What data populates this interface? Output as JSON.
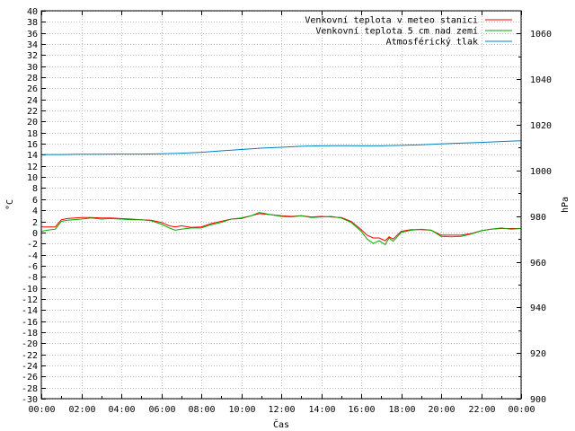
{
  "chart_data": {
    "type": "line",
    "title": "",
    "xlabel": "Čas",
    "ylabel_left": "°C",
    "ylabel_right": "hPa",
    "x_ticks": [
      "00:00",
      "02:00",
      "04:00",
      "06:00",
      "08:00",
      "10:00",
      "12:00",
      "14:00",
      "16:00",
      "18:00",
      "20:00",
      "22:00",
      "00:00"
    ],
    "xlim_hours": [
      0,
      24
    ],
    "ylim_left": [
      -30,
      40
    ],
    "ylim_right": [
      900,
      1070
    ],
    "y_left_ticks": [
      40,
      38,
      36,
      34,
      32,
      30,
      28,
      26,
      24,
      22,
      20,
      18,
      16,
      14,
      12,
      10,
      8,
      6,
      4,
      2,
      0,
      -2,
      -4,
      -6,
      -8,
      -10,
      -12,
      -14,
      -16,
      -18,
      -20,
      -22,
      -24,
      -26,
      -28,
      -30
    ],
    "y_right_ticks": [
      1060,
      1040,
      1020,
      1000,
      980,
      960,
      940,
      920,
      900
    ],
    "grid": true,
    "legend_position": "top-right",
    "series": [
      {
        "name": "Venkovní teplota v meteo stanici",
        "color": "#ff0000",
        "axis": "left",
        "x": [
          0,
          0.3,
          0.7,
          1.0,
          1.3,
          2.0,
          2.5,
          3.0,
          3.5,
          4.0,
          4.5,
          5.0,
          5.5,
          6.0,
          6.4,
          6.7,
          7.0,
          7.5,
          8.0,
          8.5,
          9.0,
          9.5,
          10.0,
          10.5,
          10.9,
          11.2,
          11.5,
          12.0,
          12.5,
          13.0,
          13.5,
          14.0,
          14.5,
          15.0,
          15.5,
          16.0,
          16.3,
          16.6,
          16.9,
          17.2,
          17.4,
          17.6,
          18.0,
          18.5,
          19.0,
          19.5,
          20.0,
          20.5,
          21.0,
          21.5,
          22.0,
          22.5,
          23.0,
          23.5,
          24.0
        ],
        "y": [
          1.0,
          1.0,
          1.0,
          2.3,
          2.5,
          2.7,
          2.7,
          2.6,
          2.6,
          2.5,
          2.4,
          2.3,
          2.2,
          1.8,
          1.2,
          1.0,
          1.2,
          0.9,
          1.0,
          1.6,
          2.0,
          2.4,
          2.5,
          3.0,
          3.4,
          3.3,
          3.2,
          3.0,
          2.9,
          3.0,
          2.8,
          2.9,
          2.8,
          2.7,
          2.0,
          0.5,
          -0.5,
          -1.0,
          -1.0,
          -1.5,
          -0.8,
          -1.2,
          0.2,
          0.5,
          0.5,
          0.4,
          -0.5,
          -0.5,
          -0.5,
          -0.2,
          0.3,
          0.6,
          0.7,
          0.7,
          0.7
        ]
      },
      {
        "name": "Venkovní teplota 5 cm nad zemí",
        "color": "#00aa00",
        "axis": "left",
        "x": [
          0,
          0.3,
          0.7,
          1.0,
          1.3,
          2.0,
          2.5,
          3.0,
          3.5,
          4.0,
          4.5,
          5.0,
          5.5,
          6.0,
          6.4,
          6.7,
          7.0,
          7.5,
          8.0,
          8.5,
          9.0,
          9.5,
          10.0,
          10.5,
          10.9,
          11.2,
          11.5,
          12.0,
          12.5,
          13.0,
          13.5,
          14.0,
          14.5,
          15.0,
          15.5,
          16.0,
          16.3,
          16.6,
          16.9,
          17.2,
          17.4,
          17.6,
          18.0,
          18.5,
          19.0,
          19.5,
          20.0,
          20.5,
          21.0,
          21.5,
          22.0,
          22.5,
          23.0,
          23.5,
          24.0
        ],
        "y": [
          0.2,
          0.4,
          0.6,
          2.0,
          2.2,
          2.4,
          2.6,
          2.4,
          2.5,
          2.4,
          2.3,
          2.3,
          2.1,
          1.5,
          0.8,
          0.4,
          0.6,
          0.8,
          0.8,
          1.4,
          1.8,
          2.4,
          2.6,
          3.0,
          3.6,
          3.4,
          3.2,
          2.9,
          2.8,
          3.0,
          2.7,
          2.8,
          2.9,
          2.6,
          1.8,
          0.2,
          -1.2,
          -2.0,
          -1.5,
          -2.2,
          -1.0,
          -1.6,
          0.0,
          0.4,
          0.6,
          0.4,
          -0.7,
          -0.8,
          -0.7,
          -0.3,
          0.3,
          0.6,
          0.8,
          0.6,
          0.7
        ]
      },
      {
        "name": "Atmosférický tlak",
        "color": "#0080c0",
        "axis": "right",
        "x": [
          0,
          1,
          2,
          3,
          4,
          5,
          6,
          7,
          8,
          9,
          10,
          11,
          12,
          13,
          14,
          15,
          16,
          17,
          18,
          19,
          20,
          21,
          22,
          23,
          24
        ],
        "y": [
          1007.0,
          1007.0,
          1007.1,
          1007.1,
          1007.2,
          1007.2,
          1007.3,
          1007.6,
          1008.0,
          1008.6,
          1009.2,
          1009.8,
          1010.2,
          1010.6,
          1010.8,
          1010.9,
          1010.8,
          1010.8,
          1011.0,
          1011.3,
          1011.7,
          1012.0,
          1012.3,
          1012.7,
          1013.0
        ]
      }
    ]
  }
}
